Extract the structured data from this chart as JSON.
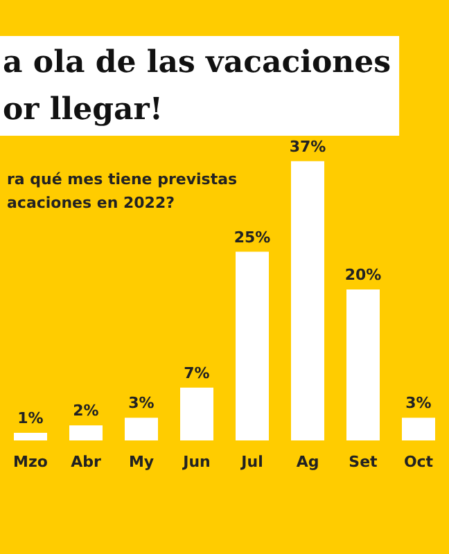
{
  "chart_data": {
    "type": "bar",
    "title": "a ola de las vacaciones\nor llegar!",
    "subtitle": "ra qué mes tiene previstas\nacaciones en 2022?",
    "categories": [
      "Mzo",
      "Abr",
      "My",
      "Jun",
      "Jul",
      "Ag",
      "Set",
      "Oct"
    ],
    "values": [
      1,
      2,
      3,
      7,
      25,
      37,
      20,
      3
    ],
    "value_labels": [
      "1%",
      "2%",
      "3%",
      "7%",
      "25%",
      "37%",
      "20%",
      "3%"
    ],
    "color": "#ffffff"
  }
}
